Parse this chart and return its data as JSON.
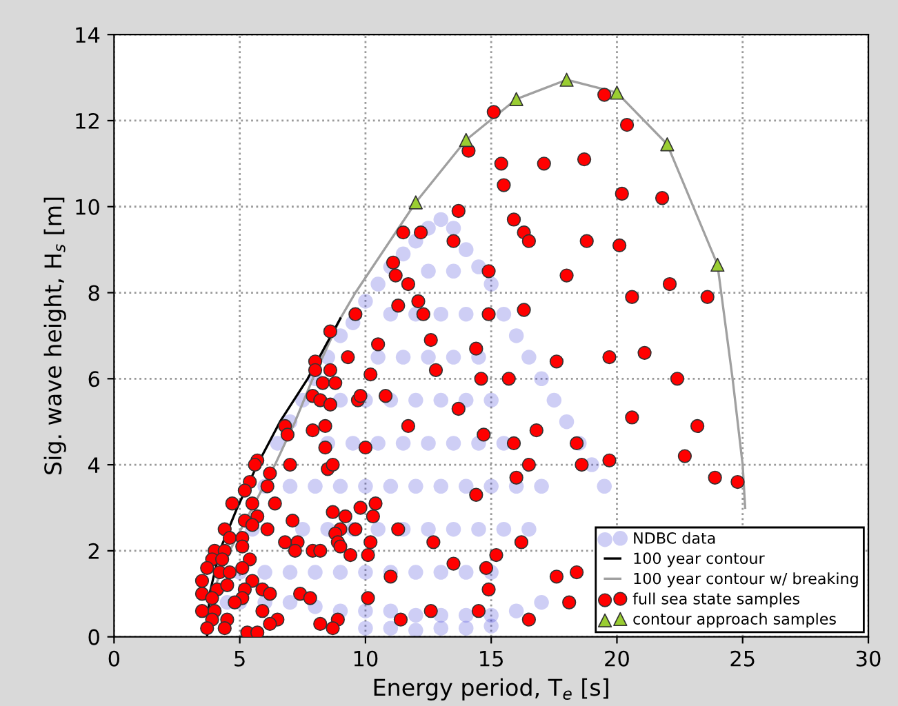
{
  "chart_data": {
    "type": "scatter",
    "xlabel": "Energy period, T$_{e}$ [s]",
    "ylabel": "Sig. wave height, H$_{s}$ [m]",
    "xlim": [
      0,
      30
    ],
    "ylim": [
      0,
      14
    ],
    "xticks": [
      0,
      5,
      10,
      15,
      20,
      25,
      30
    ],
    "yticks": [
      0,
      2,
      4,
      6,
      8,
      10,
      12,
      14
    ],
    "grid": true,
    "legend": "bottom right",
    "series": [
      {
        "name": "NDBC data",
        "type": "scatter",
        "marker": "circle",
        "color": "#3b3bd6",
        "x": [
          4.5,
          5,
          5.5,
          6,
          6.5,
          7,
          7.5,
          8,
          8.5,
          9,
          9.5,
          10,
          10.5,
          11,
          11.5,
          12,
          12.5,
          13,
          13.5,
          14,
          14.5,
          15,
          15.5,
          16,
          16.5,
          17,
          17.5,
          18,
          18.5,
          19,
          19.5,
          17,
          16,
          15,
          14,
          13,
          12,
          11,
          10,
          9,
          8,
          7,
          6,
          5,
          10,
          11,
          12,
          13,
          14,
          15,
          6,
          7,
          8,
          9,
          10,
          11,
          12,
          13,
          14,
          15,
          7.5,
          8.5,
          9.5,
          10.5,
          11.5,
          12.5,
          13.5,
          14.5,
          15.5,
          16.5,
          7,
          8,
          9,
          10,
          11,
          12,
          13,
          14,
          15,
          16,
          17,
          8.5,
          9.5,
          10.5,
          11.5,
          12.5,
          13.5,
          14.5,
          15.5,
          9,
          10,
          11,
          12,
          13,
          14,
          15,
          10.5,
          11.5,
          12.5,
          13.5,
          14.5,
          11,
          12,
          13,
          14,
          12.5,
          13.5
        ],
        "values": [
          0.8,
          1.5,
          2.5,
          3.5,
          4.5,
          5,
          5.5,
          6,
          6.5,
          7,
          7.3,
          7.8,
          8.2,
          8.6,
          8.9,
          9.2,
          9.5,
          9.7,
          9.5,
          9,
          8.6,
          8.2,
          7.5,
          7,
          6.5,
          6,
          5.5,
          5,
          4.5,
          4,
          3.5,
          0.8,
          0.6,
          0.5,
          0.5,
          0.5,
          0.5,
          0.6,
          0.6,
          0.6,
          0.7,
          0.8,
          0.8,
          0.8,
          0.2,
          0.2,
          0.15,
          0.2,
          0.2,
          0.25,
          1.5,
          1.5,
          1.5,
          1.5,
          1.5,
          1.5,
          1.5,
          1.5,
          1.5,
          1.5,
          2.5,
          2.5,
          2.5,
          2.5,
          2.5,
          2.5,
          2.5,
          2.5,
          2.5,
          2.5,
          3.5,
          3.5,
          3.5,
          3.5,
          3.5,
          3.5,
          3.5,
          3.5,
          3.5,
          3.5,
          3.5,
          4.5,
          4.5,
          4.5,
          4.5,
          4.5,
          4.5,
          4.5,
          4.5,
          5.5,
          5.5,
          5.5,
          5.5,
          5.5,
          5.5,
          5.5,
          6.5,
          6.5,
          6.5,
          6.5,
          6.5,
          7.5,
          7.5,
          7.5,
          7.5,
          8.5,
          8.5
        ]
      },
      {
        "name": "100 year contour",
        "type": "line",
        "marker": "none",
        "line_style": "solid",
        "color": "#000000",
        "x": [
          3.7,
          3.8,
          4.2,
          4.9,
          5.7,
          6.6,
          7.7,
          9.0
        ],
        "values": [
          0,
          1,
          2,
          3,
          4,
          5,
          6,
          7.4
        ]
      },
      {
        "name": "100 year contour w/ breaking",
        "type": "line",
        "marker": "none",
        "line_style": "solid",
        "color": "#a0a0a0",
        "x": [
          3.7,
          3.9,
          4.6,
          5.5,
          6.4,
          7.2,
          7.9,
          9.0,
          9.6,
          12.0,
          14.0,
          16.0,
          18.0,
          20.0,
          22.0,
          24.0,
          24.6,
          25.0,
          25.1
        ],
        "values": [
          0,
          1,
          2,
          3,
          4,
          5,
          6,
          7.4,
          8,
          10.1,
          11.55,
          12.5,
          12.95,
          12.65,
          11.45,
          8.65,
          6,
          4,
          3
        ]
      },
      {
        "name": "full sea state samples",
        "type": "scatter",
        "marker": "circle",
        "color": "#ff0000",
        "x": [
          15.1,
          14.1,
          13.7,
          11.5,
          12.2,
          13.5,
          11.1,
          11.2,
          11.7,
          14.9,
          11.3,
          12.1,
          12.3,
          14.9,
          9.6,
          8.6,
          19.5,
          20.4,
          15.4,
          15.5,
          17.1,
          18.7,
          20.2,
          21.8,
          15.9,
          16.3,
          16.5,
          18.8,
          20.1,
          18.0,
          20.6,
          22.1,
          23.6,
          16.3,
          14.4,
          14.6,
          15.7,
          17.6,
          19.7,
          21.1,
          22.4,
          13.7,
          20.6,
          23.2,
          14.7,
          15.9,
          16.8,
          18.4,
          16.5,
          16.0,
          18.6,
          19.7,
          22.7,
          23.9,
          24.8,
          14.4,
          16.2,
          15.2,
          13.5,
          14.8,
          14.9,
          17.6,
          18.4,
          18.1,
          14.5,
          16.5,
          9.3,
          10.5,
          12.6,
          8.0,
          8.0,
          8.6,
          8.3,
          8.8,
          10.2,
          12.8,
          7.9,
          8.2,
          8.6,
          9.7,
          9.8,
          10.8,
          6.8,
          6.9,
          7.9,
          8.4,
          11.7,
          8.4,
          10.0,
          5.7,
          5.6,
          7.0,
          8.5,
          8.7,
          6.2,
          5.4,
          6.1,
          5.2,
          5.5,
          4.7,
          6.4,
          10.4,
          8.7,
          9.8,
          5.2,
          5.7,
          7.1,
          9.2,
          10.3,
          5.5,
          6.1,
          9.0,
          9.6,
          11.3,
          4.4,
          4.6,
          8.8,
          5.1,
          6.8,
          7.3,
          8.9,
          10.2,
          12.7,
          5.1,
          7.2,
          7.9,
          8.2,
          9.0,
          4.0,
          4.4,
          9.4,
          10.1,
          5.4,
          3.9,
          4.3,
          3.7,
          4.2,
          4.6,
          5.1,
          3.5,
          5.5,
          11.0,
          4.1,
          4.5,
          5.9,
          6.2,
          7.4,
          7.8,
          5.2,
          3.5,
          3.9,
          5.1,
          10.1,
          3.5,
          4.0,
          4.8,
          5.9,
          12.6,
          3.9,
          4.5,
          6.5,
          8.2,
          8.9,
          11.4,
          3.7,
          4.4,
          5.3,
          5.7,
          6.2,
          8.7
        ],
        "values": [
          12.2,
          11.3,
          9.9,
          9.4,
          9.4,
          9.2,
          8.7,
          8.4,
          8.2,
          8.5,
          7.7,
          7.8,
          7.5,
          7.5,
          7.5,
          7.1,
          12.6,
          11.9,
          11.0,
          10.5,
          11.0,
          11.1,
          10.3,
          10.2,
          9.7,
          9.4,
          9.2,
          9.2,
          9.1,
          8.4,
          7.9,
          8.2,
          7.9,
          7.6,
          6.7,
          6.0,
          6.0,
          6.4,
          6.5,
          6.6,
          6.0,
          5.3,
          5.1,
          4.9,
          4.7,
          4.5,
          4.8,
          4.5,
          4.0,
          3.7,
          4.0,
          4.1,
          4.2,
          3.7,
          3.6,
          3.3,
          2.2,
          1.9,
          1.7,
          1.6,
          1.1,
          1.4,
          1.5,
          0.8,
          0.6,
          0.4,
          6.5,
          6.8,
          6.9,
          6.4,
          6.2,
          6.2,
          5.9,
          5.9,
          6.1,
          6.2,
          5.6,
          5.5,
          5.4,
          5.5,
          5.6,
          5.6,
          4.9,
          4.7,
          4.8,
          4.9,
          4.9,
          4.4,
          4.4,
          4.1,
          4.0,
          4.0,
          3.9,
          4.0,
          3.8,
          3.6,
          3.5,
          3.4,
          3.1,
          3.1,
          3.1,
          3.1,
          2.9,
          3.0,
          2.7,
          2.8,
          2.7,
          2.8,
          2.8,
          2.6,
          2.5,
          2.5,
          2.5,
          2.5,
          2.5,
          2.3,
          2.4,
          2.3,
          2.2,
          2.2,
          2.2,
          2.2,
          2.2,
          2.1,
          2.0,
          2.0,
          2.0,
          2.1,
          2.0,
          2.0,
          1.9,
          1.9,
          1.8,
          1.8,
          1.8,
          1.6,
          1.5,
          1.5,
          1.6,
          1.3,
          1.3,
          1.4,
          1.1,
          1.2,
          1.1,
          1.0,
          1.0,
          0.9,
          1.1,
          1.0,
          0.9,
          0.9,
          0.9,
          0.6,
          0.6,
          0.8,
          0.6,
          0.6,
          0.4,
          0.4,
          0.4,
          0.3,
          0.4,
          0.4,
          0.2,
          0.2,
          0.1,
          0.1,
          0.3,
          0.2
        ]
      },
      {
        "name": "contour approach samples",
        "type": "scatter",
        "marker": "triangle",
        "color": "#9acd32",
        "x": [
          12.0,
          14.0,
          16.0,
          18.0,
          20.0,
          22.0,
          24.0
        ],
        "values": [
          10.1,
          11.55,
          12.5,
          12.95,
          12.65,
          11.45,
          8.65
        ]
      }
    ]
  }
}
